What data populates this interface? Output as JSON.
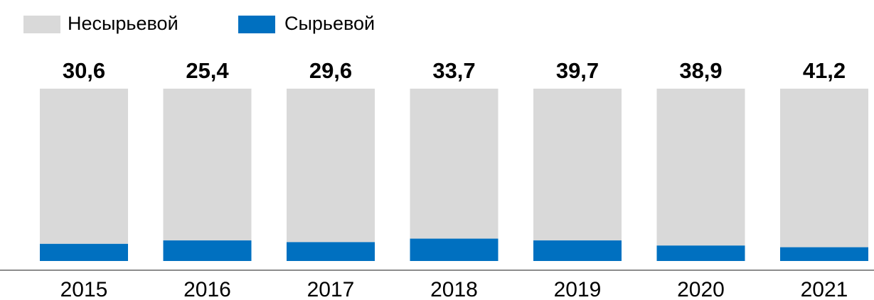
{
  "chart_data": {
    "type": "stacked_bar",
    "categories": [
      "2015",
      "2016",
      "2017",
      "2018",
      "2019",
      "2020",
      "2021"
    ],
    "series": [
      {
        "name": "Сырьевой",
        "color": "#0070c0",
        "values": [
          10,
          12,
          11,
          13,
          12,
          9,
          8
        ]
      },
      {
        "name": "Несырьевой",
        "color": "#d9d9d9",
        "values": [
          90,
          88,
          89,
          87,
          88,
          91,
          92
        ]
      }
    ],
    "totals": {
      "values": [
        30.6,
        25.4,
        29.6,
        33.7,
        39.7,
        38.9,
        41.2
      ],
      "value_labels": [
        "30,6",
        "25,4",
        "29,6",
        "33,7",
        "39,7",
        "38,9",
        "41,2"
      ]
    },
    "ylim": [
      0,
      100
    ]
  }
}
